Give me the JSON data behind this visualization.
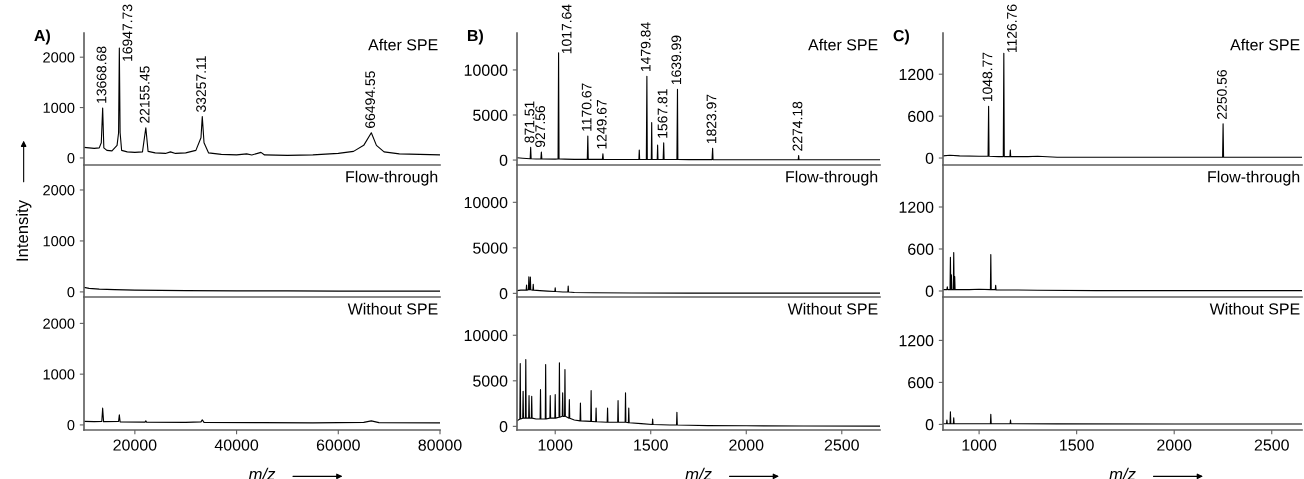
{
  "chart_data": [
    {
      "type": "line",
      "title": "A)",
      "annotations": [
        "After SPE",
        {
          "text": "13668.68",
          "x": 13668.68,
          "y": 990
        },
        {
          "text": "16947.73",
          "x": 16947.73,
          "y": 2180
        },
        {
          "text": "22155.45",
          "x": 22155.45,
          "y": 600
        },
        {
          "text": "33257.11",
          "x": 33257.11,
          "y": 820
        },
        {
          "text": "66494.55",
          "x": 66494.55,
          "y": 500
        }
      ],
      "xlim": [
        10000,
        80000
      ],
      "ylim": [
        -140,
        2480
      ],
      "yticks": [
        0,
        1000,
        2000
      ],
      "tick_labels": "y",
      "series": [
        {
          "color": "#000000",
          "x": [
            10000,
            11000,
            12000,
            13000,
            13400,
            13668.68,
            13900,
            14500,
            15500,
            16500,
            16800,
            16947.73,
            17100,
            17400,
            18500,
            20000,
            21500,
            22155.45,
            22600,
            24000,
            26000,
            27000,
            28000,
            30000,
            32000,
            33000,
            33257.11,
            33600,
            34500,
            37000,
            40000,
            42000,
            43000,
            44800,
            45500,
            50000,
            55000,
            60000,
            63000,
            65000,
            66494.55,
            67500,
            69000,
            72000,
            76000,
            80000
          ],
          "values": [
            210,
            200,
            190,
            200,
            300,
            990,
            200,
            150,
            140,
            250,
            500,
            2180,
            500,
            150,
            120,
            110,
            120,
            600,
            130,
            100,
            90,
            120,
            90,
            100,
            150,
            400,
            820,
            300,
            100,
            70,
            60,
            80,
            60,
            110,
            60,
            50,
            60,
            90,
            130,
            250,
            500,
            250,
            120,
            80,
            70,
            60
          ]
        }
      ]
    },
    {
      "type": "line",
      "ylabel": "Intensity",
      "annotations": [
        "Flow-through"
      ],
      "xlim": [
        10000,
        80000
      ],
      "ylim": [
        -100,
        2490
      ],
      "yticks": [
        0,
        1000,
        2000
      ],
      "tick_labels": "y",
      "series": [
        {
          "color": "#000000",
          "x": [
            10000,
            11000,
            13000,
            16000,
            20000,
            25000,
            30000,
            40000,
            50000,
            60000,
            70000,
            80000
          ],
          "values": [
            90,
            70,
            55,
            45,
            35,
            30,
            25,
            20,
            20,
            15,
            15,
            15
          ]
        }
      ]
    },
    {
      "type": "line",
      "xlabel": "m/z",
      "annotations": [
        "Without SPE"
      ],
      "xlim": [
        10000,
        80000
      ],
      "ylim": [
        -100,
        2520
      ],
      "xticks": [
        20000,
        40000,
        60000,
        80000
      ],
      "yticks": [
        0,
        1000,
        2000
      ],
      "series": [
        {
          "color": "#000000",
          "x": [
            10000,
            12000,
            13500,
            13668.68,
            13850,
            16800,
            16947.73,
            17100,
            22000,
            22155.45,
            22300,
            30000,
            33000,
            33257.11,
            33600,
            45000,
            55000,
            65000,
            66494.55,
            68000,
            80000
          ],
          "values": [
            70,
            65,
            70,
            330,
            65,
            70,
            200,
            60,
            55,
            80,
            55,
            50,
            60,
            100,
            50,
            45,
            40,
            50,
            80,
            45,
            40
          ]
        }
      ]
    },
    {
      "type": "line",
      "title": "B)",
      "annotations": [
        "After SPE",
        {
          "text": "871.51",
          "x": 871.51,
          "y": 1400
        },
        {
          "text": "927.56",
          "x": 927.56,
          "y": 900
        },
        {
          "text": "1017.64",
          "x": 1017.64,
          "y": 11900
        },
        {
          "text": "1170.67",
          "x": 1170.67,
          "y": 2660
        },
        {
          "text": "1249.67",
          "x": 1249.67,
          "y": 700
        },
        {
          "text": "1479.84",
          "x": 1479.84,
          "y": 9300
        },
        {
          "text": "1567.81",
          "x": 1567.81,
          "y": 1900
        },
        {
          "text": "1639.99",
          "x": 1639.99,
          "y": 7850
        },
        {
          "text": "1823.97",
          "x": 1823.97,
          "y": 1300
        },
        {
          "text": "2274.18",
          "x": 2274.18,
          "y": 500
        }
      ],
      "xlim": [
        800,
        2700
      ],
      "ylim": [
        -550,
        14100
      ],
      "yticks": [
        0,
        5000,
        10000
      ],
      "tick_labels": "y",
      "series": [
        {
          "color": "#000000",
          "x": [
            800,
            830,
            869,
            871.51,
            874,
            900,
            925,
            927.56,
            930,
            1000,
            1015,
            1017.64,
            1020,
            1050,
            1100,
            1168,
            1170.67,
            1173,
            1247,
            1249.67,
            1252,
            1300,
            1400,
            1438,
            1440,
            1442,
            1477,
            1479.84,
            1482,
            1503,
            1505,
            1507,
            1534,
            1536,
            1538,
            1565,
            1567.81,
            1570,
            1637,
            1639.99,
            1642,
            1700,
            1821,
            1823.97,
            1826,
            1900,
            2100,
            2272,
            2274.18,
            2276,
            2500,
            2700
          ],
          "values": [
            250,
            200,
            150,
            1400,
            150,
            120,
            110,
            900,
            110,
            100,
            120,
            11900,
            120,
            100,
            80,
            80,
            2660,
            80,
            70,
            700,
            70,
            60,
            60,
            60,
            1100,
            60,
            60,
            9300,
            60,
            60,
            4150,
            60,
            60,
            1650,
            60,
            60,
            1900,
            60,
            60,
            7850,
            60,
            50,
            50,
            1300,
            50,
            40,
            40,
            40,
            500,
            40,
            30,
            30
          ]
        }
      ]
    },
    {
      "type": "line",
      "annotations": [
        "Flow-through"
      ],
      "xlim": [
        800,
        2700
      ],
      "ylim": [
        -400,
        14100
      ],
      "yticks": [
        0,
        5000,
        10000
      ],
      "tick_labels": "y",
      "series": [
        {
          "color": "#000000",
          "x": [
            800,
            820,
            848,
            850,
            852,
            860,
            862,
            864,
            868,
            870,
            872,
            883,
            885,
            887,
            920,
            960,
            998,
            1000,
            1002,
            1040,
            1066,
            1068,
            1070,
            1100,
            1200,
            1400,
            1700,
            2000,
            2400,
            2700
          ],
          "values": [
            300,
            350,
            350,
            900,
            350,
            400,
            1830,
            400,
            400,
            1800,
            400,
            350,
            1000,
            350,
            300,
            250,
            200,
            600,
            200,
            150,
            150,
            800,
            150,
            100,
            60,
            40,
            30,
            25,
            20,
            20
          ]
        }
      ]
    },
    {
      "type": "line",
      "xlabel": "m/z",
      "annotations": [
        "Without SPE"
      ],
      "xlim": [
        800,
        2700
      ],
      "ylim": [
        -400,
        14200
      ],
      "xticks": [
        1000,
        1500,
        2000,
        2500
      ],
      "yticks": [
        0,
        5000,
        10000
      ],
      "series": [
        {
          "color": "#000000",
          "x": [
            800,
            815,
            817,
            819,
            830,
            832,
            834,
            844,
            846,
            848,
            861,
            863,
            865,
            875,
            877,
            879,
            900,
            921,
            923,
            925,
            948,
            950,
            952,
            972,
            974,
            976,
            998,
            1000,
            1002,
            1020,
            1022,
            1024,
            1037,
            1039,
            1041,
            1049,
            1051,
            1053,
            1072,
            1074,
            1076,
            1100,
            1130,
            1132,
            1134,
            1186,
            1188,
            1190,
            1212,
            1214,
            1216,
            1272,
            1274,
            1276,
            1327,
            1329,
            1331,
            1366,
            1368,
            1370,
            1383,
            1385,
            1387,
            1450,
            1508,
            1510,
            1512,
            1600,
            1635,
            1637,
            1639,
            1700,
            1800,
            2000,
            2300,
            2700
          ],
          "values": [
            600,
            800,
            6900,
            800,
            900,
            3850,
            900,
            900,
            7330,
            900,
            900,
            3370,
            900,
            900,
            3300,
            900,
            800,
            800,
            4030,
            800,
            800,
            6780,
            800,
            900,
            3370,
            900,
            900,
            3480,
            900,
            1000,
            6970,
            1000,
            1100,
            3670,
            1100,
            1100,
            6230,
            1100,
            900,
            2930,
            900,
            700,
            600,
            2570,
            600,
            550,
            3920,
            550,
            500,
            2020,
            500,
            450,
            2020,
            450,
            450,
            2820,
            450,
            450,
            3670,
            450,
            400,
            2020,
            400,
            300,
            200,
            800,
            200,
            150,
            150,
            1540,
            150,
            120,
            80,
            60,
            40,
            30
          ]
        }
      ]
    },
    {
      "type": "line",
      "title": "C)",
      "annotations": [
        "After SPE",
        {
          "text": "1048.77",
          "x": 1048.77,
          "y": 740
        },
        {
          "text": "1126.76",
          "x": 1126.76,
          "y": 1500
        },
        {
          "text": "2250.56",
          "x": 2250.56,
          "y": 490
        }
      ],
      "xlim": [
        815,
        2655
      ],
      "ylim": [
        -100,
        1790
      ],
      "yticks": [
        0,
        600,
        1200
      ],
      "tick_labels": "y",
      "series": [
        {
          "color": "#000000",
          "x": [
            815,
            850,
            900,
            1000,
            1046,
            1048.77,
            1051,
            1100,
            1124,
            1126.76,
            1129,
            1158,
            1160,
            1162,
            1250,
            1300,
            1400,
            1800,
            2248,
            2250.56,
            2253,
            2500,
            2655
          ],
          "values": [
            30,
            40,
            30,
            25,
            25,
            740,
            25,
            20,
            20,
            1500,
            20,
            20,
            115,
            20,
            20,
            25,
            10,
            10,
            10,
            490,
            10,
            10,
            10
          ]
        }
      ]
    },
    {
      "type": "line",
      "annotations": [
        "Flow-through"
      ],
      "xlim": [
        815,
        2655
      ],
      "ylim": [
        -86,
        1800
      ],
      "yticks": [
        0,
        600,
        1200
      ],
      "tick_labels": "y",
      "series": [
        {
          "color": "#000000",
          "x": [
            815,
            835,
            837,
            839,
            851,
            853,
            855,
            856,
            858,
            860,
            868,
            870,
            872,
            873,
            875,
            877,
            950,
            1000,
            1058,
            1060,
            1062,
            1083,
            1085,
            1087,
            1200,
            1300,
            1600,
            2000,
            2655
          ],
          "values": [
            20,
            20,
            60,
            20,
            20,
            480,
            20,
            20,
            230,
            20,
            20,
            550,
            20,
            20,
            205,
            20,
            20,
            25,
            20,
            520,
            20,
            20,
            80,
            15,
            15,
            10,
            5,
            5,
            5
          ]
        }
      ]
    },
    {
      "type": "line",
      "xlabel": "m/z",
      "annotations": [
        "Without SPE"
      ],
      "xlim": [
        815,
        2655
      ],
      "ylim": [
        -80,
        1820
      ],
      "xticks": [
        1000,
        1500,
        2000,
        2500
      ],
      "yticks": [
        0,
        600,
        1200
      ],
      "series": [
        {
          "color": "#000000",
          "x": [
            815,
            833,
            835,
            837,
            851,
            853,
            855,
            868,
            870,
            872,
            1058,
            1060,
            1062,
            1159,
            1161,
            1163,
            1400,
            2000,
            2655
          ],
          "values": [
            10,
            10,
            62,
            10,
            10,
            180,
            10,
            10,
            95,
            10,
            10,
            143,
            10,
            10,
            62,
            10,
            8,
            5,
            5
          ]
        }
      ]
    }
  ]
}
